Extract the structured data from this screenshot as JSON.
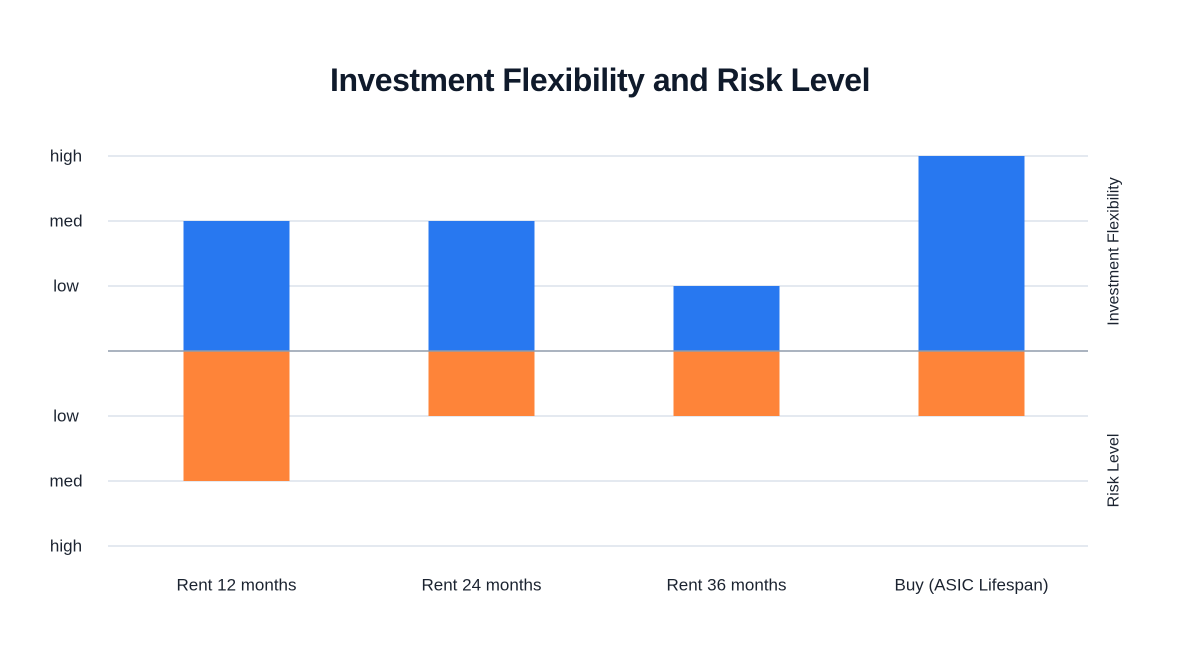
{
  "chart_data": {
    "type": "bar",
    "title": "Investment Flexibility and Risk Level",
    "categories": [
      "Rent 12 months",
      "Rent 24 months",
      "Rent 36 months",
      "Buy (ASIC Lifespan)"
    ],
    "level_labels": [
      "low",
      "med",
      "high"
    ],
    "series": [
      {
        "name": "Investment Flexibility",
        "direction": "up",
        "color": "#2878f0",
        "values": [
          2,
          2,
          1,
          3
        ]
      },
      {
        "name": "Risk Level",
        "direction": "down",
        "color": "#fe8439",
        "values": [
          2,
          1,
          1,
          1
        ]
      }
    ],
    "ylim": [
      -3,
      3
    ],
    "grid": true,
    "right_axis_labels": {
      "top": "Investment Flexibility",
      "bottom": "Risk Level"
    }
  }
}
